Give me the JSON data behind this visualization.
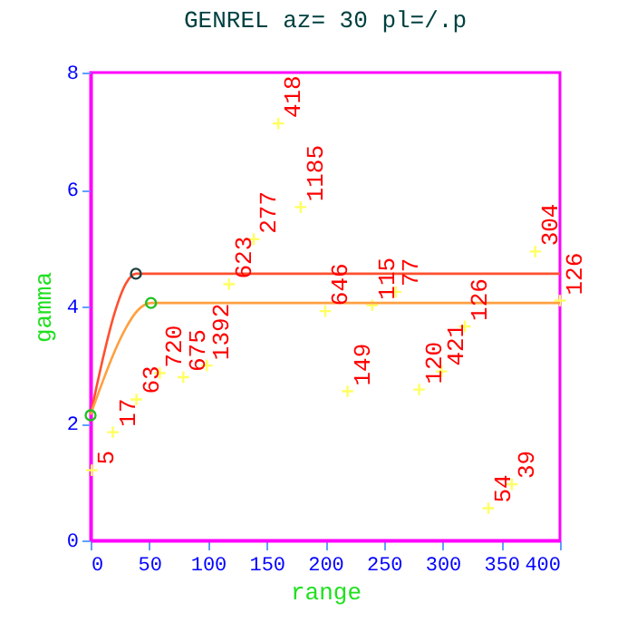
{
  "chart_data": {
    "type": "scatter",
    "title": "GENREL   az= 30   pl=/.p",
    "xlabel": "range",
    "ylabel": "gamma",
    "xlim": [
      0,
      400
    ],
    "ylim": [
      0,
      8
    ],
    "xticks": [
      0,
      50,
      100,
      150,
      200,
      250,
      300,
      350,
      400
    ],
    "yticks": [
      0,
      2,
      4,
      6,
      8
    ],
    "grid": false,
    "series": [
      {
        "marker": "cross",
        "color": "#ffff60",
        "x": [
          1,
          19,
          39,
          59,
          79,
          99,
          118,
          139,
          160,
          179,
          200,
          219,
          240,
          260,
          280,
          299,
          319,
          339,
          359,
          379,
          400
        ],
        "values": [
          1.2,
          1.85,
          2.41,
          2.86,
          2.79,
          2.99,
          4.38,
          5.15,
          7.13,
          5.7,
          3.92,
          2.55,
          4.02,
          4.25,
          2.58,
          2.89,
          3.66,
          0.55,
          0.96,
          4.94,
          4.1
        ]
      },
      {
        "type": "line",
        "color": "#ff5030",
        "x": [
          0,
          5,
          10,
          20,
          30,
          38.6,
          400
        ],
        "values": [
          2.15,
          2.62,
          3.07,
          3.86,
          4.39,
          4.56,
          4.56
        ]
      },
      {
        "type": "line",
        "color": "#ffa040",
        "x": [
          0,
          10,
          20,
          30,
          40,
          51.5,
          400
        ],
        "values": [
          2.15,
          2.7,
          3.21,
          3.63,
          3.93,
          4.06,
          4.06
        ]
      },
      {
        "type": "scatter",
        "marker": "circle",
        "color": "#20c020",
        "x": [
          0,
          51.5
        ],
        "values": [
          2.14,
          4.06
        ]
      },
      {
        "type": "scatter",
        "marker": "circle",
        "color": "#204040",
        "x": [
          38.6
        ],
        "values": [
          4.56
        ]
      }
    ],
    "annotations": [
      {
        "text": "5",
        "x": 1,
        "y": 1.2
      },
      {
        "text": "17",
        "x": 19,
        "y": 1.85
      },
      {
        "text": "63",
        "x": 39,
        "y": 2.41
      },
      {
        "text": "720",
        "x": 59,
        "y": 2.86
      },
      {
        "text": "675",
        "x": 79,
        "y": 2.79
      },
      {
        "text": "1392",
        "x": 99,
        "y": 2.99
      },
      {
        "text": "623",
        "x": 118,
        "y": 4.38
      },
      {
        "text": "277",
        "x": 139,
        "y": 5.15
      },
      {
        "text": "418",
        "x": 160,
        "y": 7.13
      },
      {
        "text": "1185",
        "x": 179,
        "y": 5.7
      },
      {
        "text": "646",
        "x": 200,
        "y": 3.92
      },
      {
        "text": "149",
        "x": 219,
        "y": 2.55
      },
      {
        "text": "115",
        "x": 240,
        "y": 4.02
      },
      {
        "text": "77",
        "x": 260,
        "y": 4.25
      },
      {
        "text": "120",
        "x": 280,
        "y": 2.58
      },
      {
        "text": "421",
        "x": 299,
        "y": 2.89
      },
      {
        "text": "126",
        "x": 319,
        "y": 3.66
      },
      {
        "text": "54",
        "x": 339,
        "y": 0.55
      },
      {
        "text": "39",
        "x": 359,
        "y": 0.96
      },
      {
        "text": "304",
        "x": 379,
        "y": 4.94
      },
      {
        "text": "126",
        "x": 400,
        "y": 4.1
      }
    ]
  }
}
